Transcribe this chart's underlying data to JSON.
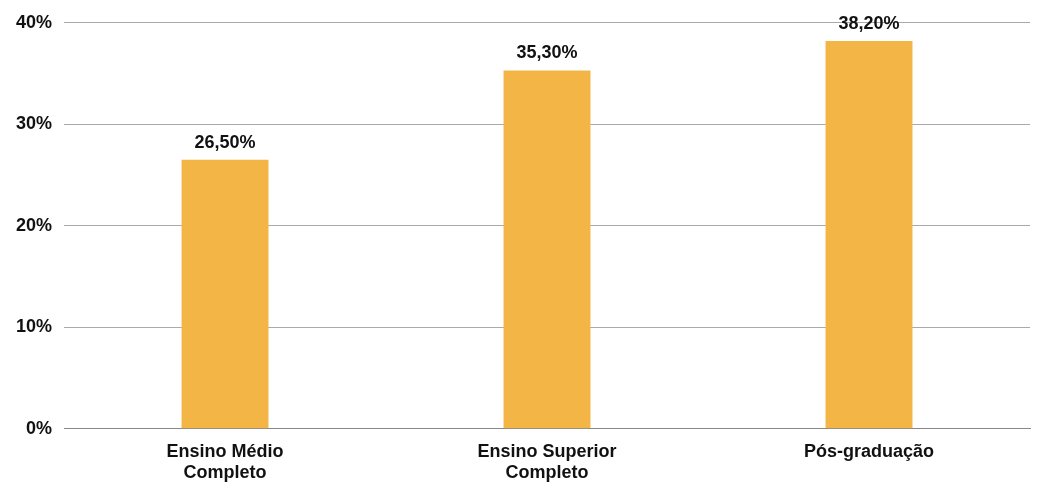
{
  "chart_data": {
    "type": "bar",
    "categories": [
      "Ensino Médio Completo",
      "Ensino Superior Completo",
      "Pós-graduação"
    ],
    "values": [
      26.5,
      35.3,
      38.2
    ],
    "value_labels": [
      "26,50%",
      "35,30%",
      "38,20%"
    ],
    "color": "#f4b547",
    "ylim": [
      0,
      40
    ],
    "yticks": [
      {
        "value": 0,
        "label": "0%"
      },
      {
        "value": 10,
        "label": "10%"
      },
      {
        "value": 20,
        "label": "20%"
      },
      {
        "value": 30,
        "label": "30%"
      },
      {
        "value": 40,
        "label": "40%"
      }
    ],
    "grid": "y",
    "legend": false
  }
}
